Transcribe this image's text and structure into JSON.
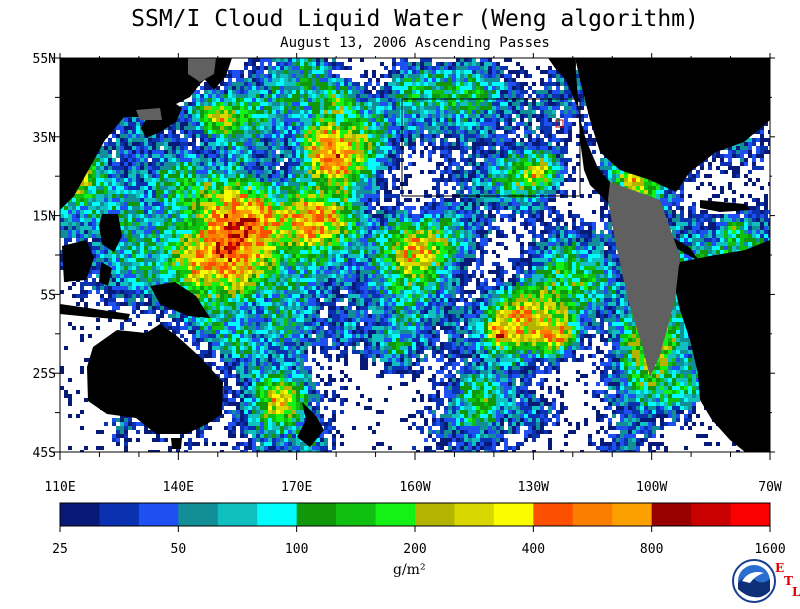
{
  "title": "SSM/I Cloud Liquid Water (Weng algorithm)",
  "subtitle": "August 13, 2006  Ascending Passes",
  "map": {
    "lat_labels": [
      "55N",
      "35N",
      "15N",
      "5S",
      "25S",
      "45S"
    ],
    "lon_labels": [
      "110E",
      "140E",
      "170E",
      "160W",
      "130W",
      "100W",
      "70W"
    ],
    "land_color": "#000000",
    "no_data_color": "#606060",
    "ocean_background": "#ffffff"
  },
  "colorbar": {
    "colors": [
      "#081a78",
      "#0a31b0",
      "#1e4ff0",
      "#118e96",
      "#10c0c0",
      "#00fcfc",
      "#10980a",
      "#10c010",
      "#13f214",
      "#b4b400",
      "#d8d800",
      "#fcfc00",
      "#fc5000",
      "#fc7e00",
      "#fca000",
      "#980000",
      "#c80000",
      "#fa0000"
    ],
    "tick_labels": [
      "25",
      "50",
      "100",
      "200",
      "400",
      "800",
      "1600"
    ],
    "units": "g/m²"
  },
  "logo": {
    "name": "NOAA",
    "etl": [
      "E",
      "T",
      "L"
    ]
  }
}
